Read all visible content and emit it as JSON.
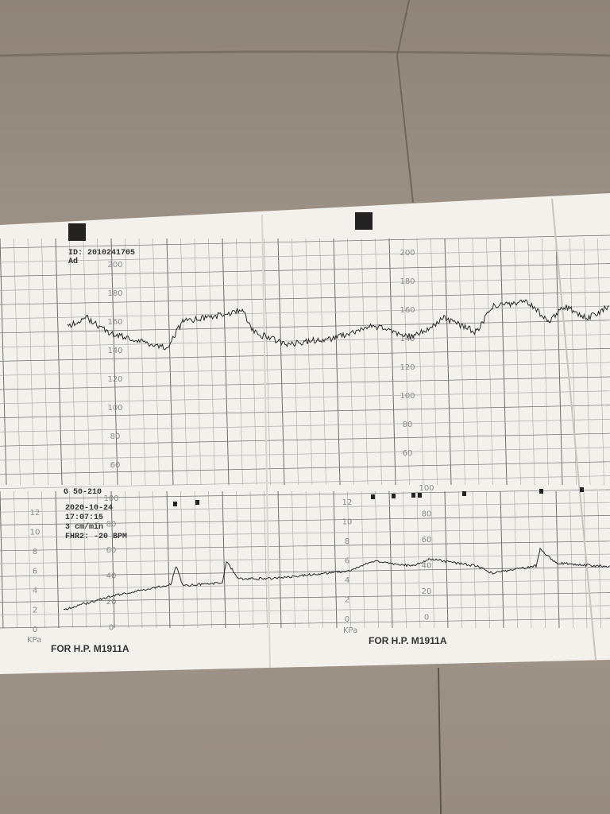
{
  "header": {
    "id": "ID: 2010241705",
    "ad": "Ad"
  },
  "fhr_scale": [
    "200",
    "180",
    "160",
    "140",
    "120",
    "100",
    "80",
    "60"
  ],
  "toco_header": {
    "range": "G 50-210",
    "date": "2020-10-24",
    "time": "17:07:15",
    "speed": "3 cm/min",
    "offset": "FHR2: -20 BPM"
  },
  "toco_scale": [
    "100",
    "80",
    "60",
    "40",
    "20",
    "0"
  ],
  "kpa_scale": [
    "12",
    "10",
    "8",
    "6",
    "4",
    "2",
    "0"
  ],
  "kpa_unit": "KPa",
  "footer": "FOR H.P. M1911A"
}
